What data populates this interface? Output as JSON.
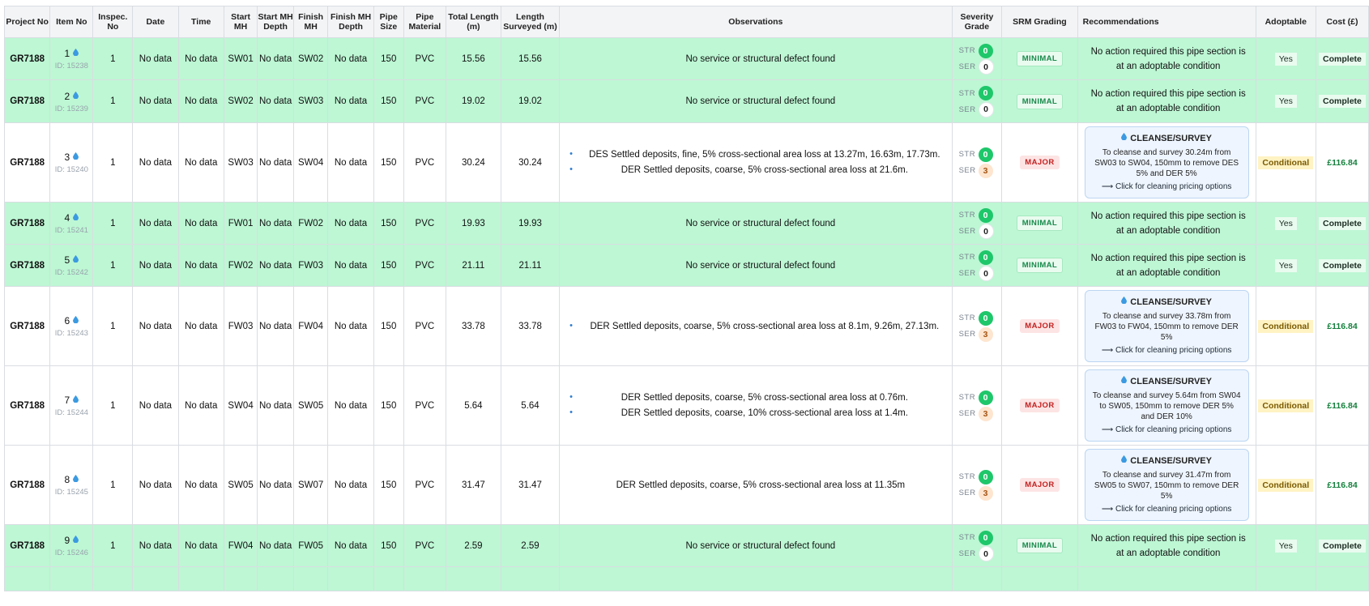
{
  "headers": {
    "project_no": "Project No",
    "item_no": "Item No",
    "inspec_no": "Inspec. No",
    "date": "Date",
    "time": "Time",
    "start_mh": "Start MH",
    "start_mh_depth": "Start MH Depth",
    "finish_mh": "Finish MH",
    "finish_mh_depth": "Finish MH Depth",
    "pipe_size": "Pipe Size",
    "pipe_material": "Pipe Material",
    "total_length": "Total Length (m)",
    "length_surveyed": "Length Surveyed (m)",
    "observations": "Observations",
    "severity_grade": "Severity Grade",
    "srm_grading": "SRM Grading",
    "recommendations": "Recommendations",
    "adoptable": "Adoptable",
    "cost": "Cost (£)"
  },
  "labels": {
    "str": "STR",
    "ser": "SER"
  },
  "rows": [
    {
      "status": "ok",
      "project": "GR7188",
      "item": "1",
      "id": "ID: 15238",
      "inspec": "1",
      "date": "No data",
      "time": "No data",
      "start_mh": "SW01",
      "start_depth": "No data",
      "finish_mh": "SW02",
      "finish_depth": "No data",
      "pipe_size": "150",
      "material": "PVC",
      "total_length": "15.56",
      "surveyed": "15.56",
      "observations": [
        "No service or structural defect found"
      ],
      "obs_bullets": false,
      "str": "0",
      "ser": "0",
      "srm": "MINIMAL",
      "rec_text": "No action required this pipe section is at an adoptable condition",
      "adoptable": "Yes",
      "cost": "Complete"
    },
    {
      "status": "ok",
      "project": "GR7188",
      "item": "2",
      "id": "ID: 15239",
      "inspec": "1",
      "date": "No data",
      "time": "No data",
      "start_mh": "SW02",
      "start_depth": "No data",
      "finish_mh": "SW03",
      "finish_depth": "No data",
      "pipe_size": "150",
      "material": "PVC",
      "total_length": "19.02",
      "surveyed": "19.02",
      "observations": [
        "No service or structural defect found"
      ],
      "obs_bullets": false,
      "str": "0",
      "ser": "0",
      "srm": "MINIMAL",
      "rec_text": "No action required this pipe section is at an adoptable condition",
      "adoptable": "Yes",
      "cost": "Complete"
    },
    {
      "status": "bad",
      "project": "GR7188",
      "item": "3",
      "id": "ID: 15240",
      "inspec": "1",
      "date": "No data",
      "time": "No data",
      "start_mh": "SW03",
      "start_depth": "No data",
      "finish_mh": "SW04",
      "finish_depth": "No data",
      "pipe_size": "150",
      "material": "PVC",
      "total_length": "30.24",
      "surveyed": "30.24",
      "observations": [
        "DES Settled deposits, fine, 5% cross-sectional area loss at 13.27m, 16.63m, 17.73m.",
        "DER Settled deposits, coarse, 5% cross-sectional area loss at 21.6m."
      ],
      "obs_bullets": true,
      "str": "0",
      "ser": "3",
      "srm": "MAJOR",
      "rec_title": "CLEANSE/SURVEY",
      "rec_text": "To cleanse and survey 30.24m from SW03 to SW04, 150mm to remove DES 5% and DER 5%",
      "rec_link": "⟶ Click for cleaning pricing options",
      "adoptable": "Conditional",
      "cost": "£116.84"
    },
    {
      "status": "ok",
      "project": "GR7188",
      "item": "4",
      "id": "ID: 15241",
      "inspec": "1",
      "date": "No data",
      "time": "No data",
      "start_mh": "FW01",
      "start_depth": "No data",
      "finish_mh": "FW02",
      "finish_depth": "No data",
      "pipe_size": "150",
      "material": "PVC",
      "total_length": "19.93",
      "surveyed": "19.93",
      "observations": [
        "No service or structural defect found"
      ],
      "obs_bullets": false,
      "str": "0",
      "ser": "0",
      "srm": "MINIMAL",
      "rec_text": "No action required this pipe section is at an adoptable condition",
      "adoptable": "Yes",
      "cost": "Complete"
    },
    {
      "status": "ok",
      "project": "GR7188",
      "item": "5",
      "id": "ID: 15242",
      "inspec": "1",
      "date": "No data",
      "time": "No data",
      "start_mh": "FW02",
      "start_depth": "No data",
      "finish_mh": "FW03",
      "finish_depth": "No data",
      "pipe_size": "150",
      "material": "PVC",
      "total_length": "21.11",
      "surveyed": "21.11",
      "observations": [
        "No service or structural defect found"
      ],
      "obs_bullets": false,
      "str": "0",
      "ser": "0",
      "srm": "MINIMAL",
      "rec_text": "No action required this pipe section is at an adoptable condition",
      "adoptable": "Yes",
      "cost": "Complete"
    },
    {
      "status": "bad",
      "project": "GR7188",
      "item": "6",
      "id": "ID: 15243",
      "inspec": "1",
      "date": "No data",
      "time": "No data",
      "start_mh": "FW03",
      "start_depth": "No data",
      "finish_mh": "FW04",
      "finish_depth": "No data",
      "pipe_size": "150",
      "material": "PVC",
      "total_length": "33.78",
      "surveyed": "33.78",
      "observations": [
        "DER Settled deposits, coarse, 5% cross-sectional area loss at 8.1m, 9.26m, 27.13m."
      ],
      "obs_bullets": true,
      "str": "0",
      "ser": "3",
      "srm": "MAJOR",
      "rec_title": "CLEANSE/SURVEY",
      "rec_text": "To cleanse and survey 33.78m from FW03 to FW04, 150mm to remove DER 5%",
      "rec_link": "⟶ Click for cleaning pricing options",
      "adoptable": "Conditional",
      "cost": "£116.84"
    },
    {
      "status": "bad",
      "project": "GR7188",
      "item": "7",
      "id": "ID: 15244",
      "inspec": "1",
      "date": "No data",
      "time": "No data",
      "start_mh": "SW04",
      "start_depth": "No data",
      "finish_mh": "SW05",
      "finish_depth": "No data",
      "pipe_size": "150",
      "material": "PVC",
      "total_length": "5.64",
      "surveyed": "5.64",
      "observations": [
        "DER Settled deposits, coarse, 5% cross-sectional area loss at 0.76m.",
        "DER Settled deposits, coarse, 10% cross-sectional area loss at 1.4m."
      ],
      "obs_bullets": true,
      "str": "0",
      "ser": "3",
      "srm": "MAJOR",
      "rec_title": "CLEANSE/SURVEY",
      "rec_text": "To cleanse and survey 5.64m from SW04 to SW05, 150mm to remove DER 5% and DER 10%",
      "rec_link": "⟶ Click for cleaning pricing options",
      "adoptable": "Conditional",
      "cost": "£116.84"
    },
    {
      "status": "bad",
      "project": "GR7188",
      "item": "8",
      "id": "ID: 15245",
      "inspec": "1",
      "date": "No data",
      "time": "No data",
      "start_mh": "SW05",
      "start_depth": "No data",
      "finish_mh": "SW07",
      "finish_depth": "No data",
      "pipe_size": "150",
      "material": "PVC",
      "total_length": "31.47",
      "surveyed": "31.47",
      "observations": [
        "DER Settled deposits, coarse, 5% cross-sectional area loss at 11.35m"
      ],
      "obs_bullets": false,
      "str": "0",
      "ser": "3",
      "srm": "MAJOR",
      "rec_title": "CLEANSE/SURVEY",
      "rec_text": "To cleanse and survey 31.47m from SW05 to SW07, 150mm to remove DER 5%",
      "rec_link": "⟶ Click for cleaning pricing options",
      "adoptable": "Conditional",
      "cost": "£116.84"
    },
    {
      "status": "ok",
      "project": "GR7188",
      "item": "9",
      "id": "ID: 15246",
      "inspec": "1",
      "date": "No data",
      "time": "No data",
      "start_mh": "FW04",
      "start_depth": "No data",
      "finish_mh": "FW05",
      "finish_depth": "No data",
      "pipe_size": "150",
      "material": "PVC",
      "total_length": "2.59",
      "surveyed": "2.59",
      "observations": [
        "No service or structural defect found"
      ],
      "obs_bullets": false,
      "str": "0",
      "ser": "0",
      "srm": "MINIMAL",
      "rec_text": "No action required this pipe section is at an adoptable condition",
      "adoptable": "Yes",
      "cost": "Complete"
    }
  ],
  "colors": {
    "ok_row": "#bdf7d4",
    "major": "#c42121",
    "minimal": "#178a4a",
    "cost": "#15803d",
    "rec_card_bg": "#eef5fe"
  },
  "icons": {
    "item_status": "water-drop-icon",
    "rec_card": "water-drop-icon"
  }
}
